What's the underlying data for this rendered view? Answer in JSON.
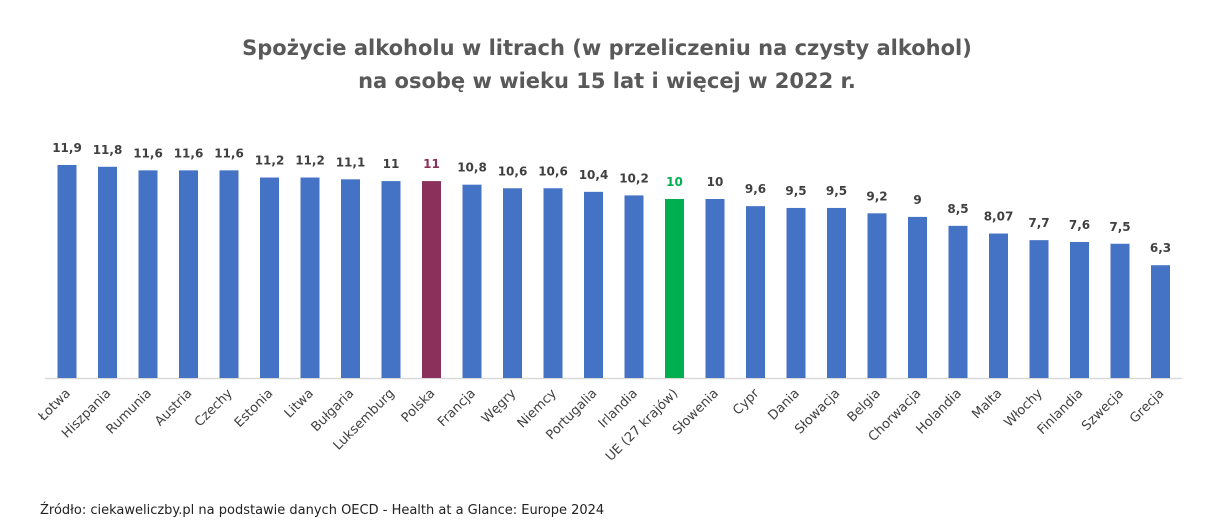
{
  "chart_data": {
    "type": "bar",
    "title": [
      "Spożycie alkoholu w litrach (w przeliczeniu na czysty alkohol)",
      "na osobę w wieku 15 lat i więcej w 2022 r."
    ],
    "categories": [
      "Łotwa",
      "Hiszpania",
      "Rumunia",
      "Austria",
      "Czechy",
      "Estonia",
      "Litwa",
      "Bułgaria",
      "Luksemburg",
      "Polska",
      "Francja",
      "Węgry",
      "Niemcy",
      "Portugalia",
      "Irlandia",
      "UE (27 krajów)",
      "Słowenia",
      "Cypr",
      "Dania",
      "Słowacja",
      "Belgia",
      "Chorwacja",
      "Holandia",
      "Malta",
      "Włochy",
      "Finlandia",
      "Szwecja",
      "Grecja"
    ],
    "values": [
      11.9,
      11.8,
      11.6,
      11.6,
      11.6,
      11.2,
      11.2,
      11.1,
      11,
      11,
      10.8,
      10.6,
      10.6,
      10.4,
      10.2,
      10,
      10,
      9.6,
      9.5,
      9.5,
      9.2,
      9,
      8.5,
      8.07,
      7.7,
      7.6,
      7.5,
      6.3
    ],
    "value_labels": [
      "11,9",
      "11,8",
      "11,6",
      "11,6",
      "11,6",
      "11,2",
      "11,2",
      "11,1",
      "11",
      "11",
      "10,8",
      "10,6",
      "10,6",
      "10,4",
      "10,2",
      "10",
      "10",
      "9,6",
      "9,5",
      "9,5",
      "9,2",
      "9",
      "8,5",
      "8,07",
      "7,7",
      "7,6",
      "7,5",
      "6,3"
    ],
    "color": "#4472c4",
    "highlight_colors": {
      "Polska": "#8b2f5b",
      "UE (27 krajów)": "#00b050"
    },
    "source": "Źródło: ciekaweliczby.pl na podstawie danych OECD - Health at a Glance: Europe 2024"
  }
}
